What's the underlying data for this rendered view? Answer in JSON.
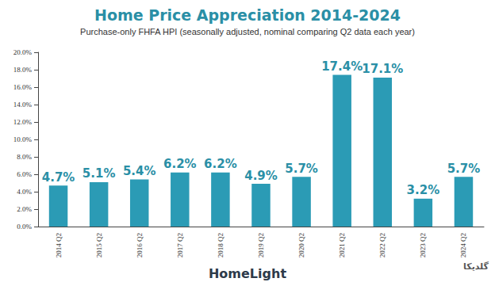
{
  "chart_data": {
    "type": "bar",
    "title": "Home Price Appreciation 2014-2024",
    "subtitle": "Purchase-only FHFA HPI (seasonally adjusted, nominal comparing Q2 data each year)",
    "categories": [
      "2014 Q2",
      "2015 Q2",
      "2016 Q2",
      "2017 Q2",
      "2018 Q2",
      "2019 Q2",
      "2020 Q2",
      "2021 Q2",
      "2022 Q2",
      "2023 Q2",
      "2024 Q2"
    ],
    "values": [
      4.7,
      5.1,
      5.4,
      6.2,
      6.2,
      4.9,
      5.7,
      17.4,
      17.1,
      3.2,
      5.7
    ],
    "value_labels": [
      "4.7%",
      "5.1%",
      "5.4%",
      "6.2%",
      "6.2%",
      "4.9%",
      "5.7%",
      "17.4%",
      "17.1%",
      "3.2%",
      "5.7%"
    ],
    "color": "#2b9bb5",
    "ylim": [
      0,
      20
    ],
    "yticks": [
      {
        "value": 0,
        "label": "0.0%"
      },
      {
        "value": 2,
        "label": "2.0%"
      },
      {
        "value": 4,
        "label": "4.0%"
      },
      {
        "value": 6,
        "label": "6.0%"
      },
      {
        "value": 8,
        "label": "8.0%"
      },
      {
        "value": 10,
        "label": "10.0%"
      },
      {
        "value": 12,
        "label": "12.0%"
      },
      {
        "value": 14,
        "label": "14.0%"
      },
      {
        "value": 16,
        "label": "16.0%"
      },
      {
        "value": 18,
        "label": "18.0%"
      },
      {
        "value": 20,
        "label": "20.0%"
      }
    ],
    "grid": false,
    "data_labels": true,
    "annotations": [
      "HomeLight",
      "گلدیکا"
    ]
  }
}
